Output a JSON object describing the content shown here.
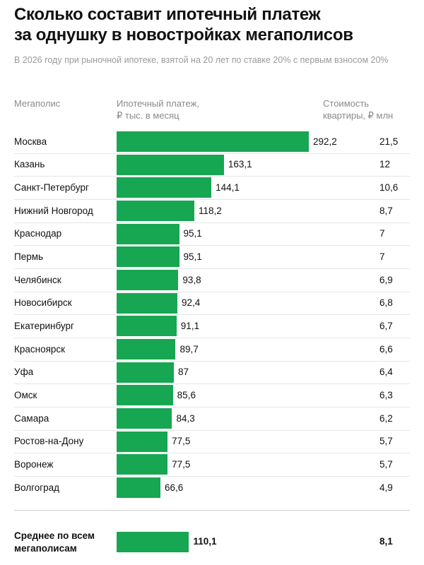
{
  "chart_data": {
    "type": "bar",
    "orientation": "horizontal",
    "title": "Сколько составит ипотечный платеж\nза однушку в новостройках мегаполисов",
    "subtitle": "В 2026 году при рыночной ипотеке, взятой на 20 лет по ставке 20% с первым взносом 20%",
    "category_header": "Мегаполис",
    "categories": [
      "Москва",
      "Казань",
      "Санкт-Петербург",
      "Нижний Новгород",
      "Краснодар",
      "Пермь",
      "Челябинск",
      "Новосибирск",
      "Екатеринбург",
      "Красноярск",
      "Уфа",
      "Омск",
      "Самара",
      "Ростов-на-Дону",
      "Воронеж",
      "Волгоград"
    ],
    "series": [
      {
        "name": "Ипотечный платеж,\n₽ тыс. в месяц",
        "color": "#17a652",
        "values": [
          292.2,
          163.1,
          144.1,
          118.2,
          95.1,
          95.1,
          93.8,
          92.4,
          91.1,
          89.7,
          87,
          85.6,
          84.3,
          77.5,
          77.5,
          66.6
        ],
        "value_labels": [
          "292,2",
          "163,1",
          "144,1",
          "118,2",
          "95,1",
          "95,1",
          "93,8",
          "92,4",
          "91,1",
          "89,7",
          "87",
          "85,6",
          "84,3",
          "77,5",
          "77,5",
          "66,6"
        ]
      }
    ],
    "prices": {
      "name": "Стоимость\nквартиры, ₽ млн",
      "values": [
        21.5,
        12,
        10.6,
        8.7,
        7,
        7,
        6.9,
        6.8,
        6.7,
        6.6,
        6.4,
        6.3,
        6.2,
        5.7,
        5.7,
        4.9
      ],
      "value_labels": [
        "21,5",
        "12",
        "10,6",
        "8,7",
        "7",
        "7",
        "6,9",
        "6,8",
        "6,7",
        "6,6",
        "6,4",
        "6,3",
        "6,2",
        "5,7",
        "5,7",
        "4,9"
      ]
    },
    "average": {
      "label": "Среднее по всем\nмегаполисам",
      "value": 110.1,
      "value_label": "110,1",
      "price": 8.1,
      "price_label": "8,1"
    }
  }
}
